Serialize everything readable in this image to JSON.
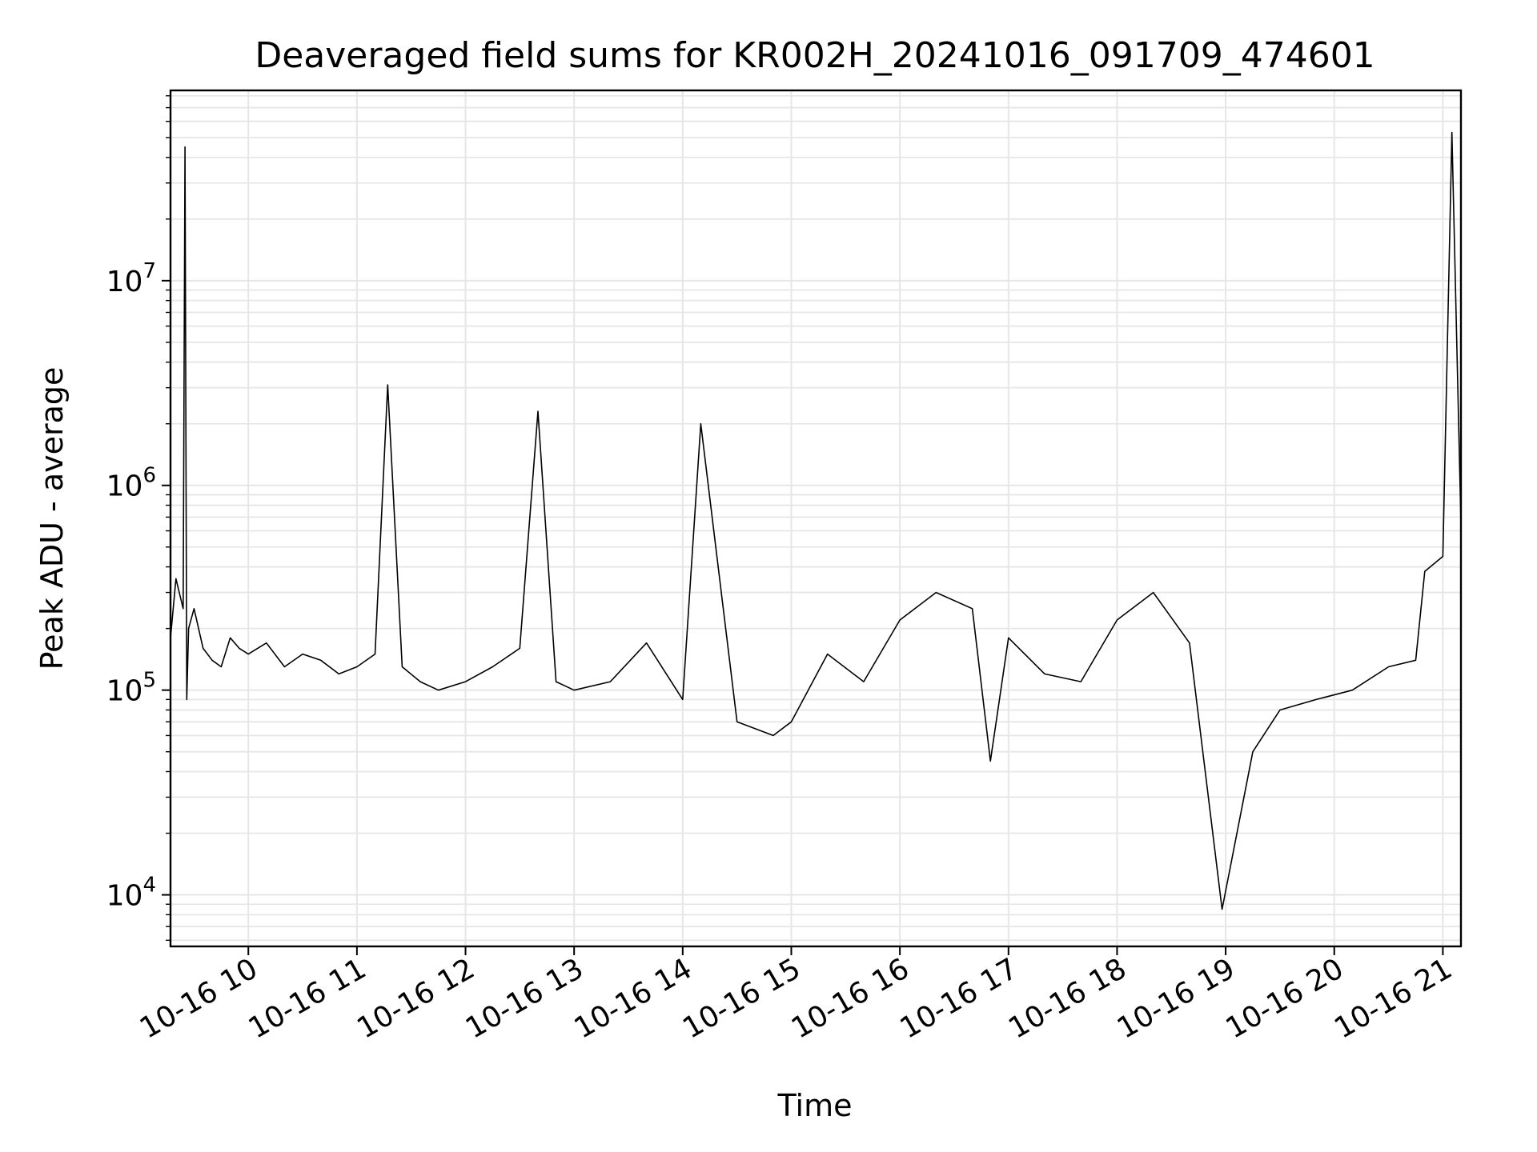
{
  "chart_data": {
    "type": "line",
    "title": "Deaveraged field sums for KR002H_20241016_091709_474601",
    "xlabel": "Time",
    "ylabel": "Peak ADU - average",
    "yscale": "log",
    "grid": true,
    "grid_minor": true,
    "line_color": "#000000",
    "grid_color": "#e6e6e6",
    "xlim": [
      "2024-10-16 09:17",
      "2024-10-16 21:10"
    ],
    "ylim": [
      5600,
      85000000
    ],
    "x_ticks": [
      {
        "t": "2024-10-16 10:00",
        "label": "10-16 10"
      },
      {
        "t": "2024-10-16 11:00",
        "label": "10-16 11"
      },
      {
        "t": "2024-10-16 12:00",
        "label": "10-16 12"
      },
      {
        "t": "2024-10-16 13:00",
        "label": "10-16 13"
      },
      {
        "t": "2024-10-16 14:00",
        "label": "10-16 14"
      },
      {
        "t": "2024-10-16 15:00",
        "label": "10-16 15"
      },
      {
        "t": "2024-10-16 16:00",
        "label": "10-16 16"
      },
      {
        "t": "2024-10-16 17:00",
        "label": "10-16 17"
      },
      {
        "t": "2024-10-16 18:00",
        "label": "10-16 18"
      },
      {
        "t": "2024-10-16 19:00",
        "label": "10-16 19"
      },
      {
        "t": "2024-10-16 20:00",
        "label": "10-16 20"
      },
      {
        "t": "2024-10-16 21:00",
        "label": "10-16 21"
      }
    ],
    "y_ticks": [
      {
        "value": 10000,
        "base": "10",
        "exp": "4"
      },
      {
        "value": 100000,
        "base": "10",
        "exp": "5"
      },
      {
        "value": 1000000,
        "base": "10",
        "exp": "6"
      },
      {
        "value": 10000000,
        "base": "10",
        "exp": "7"
      }
    ],
    "series": [
      {
        "x": [
          "2024-10-16 09:17",
          "2024-10-16 09:20",
          "2024-10-16 09:24",
          "2024-10-16 09:25",
          "2024-10-16 09:26",
          "2024-10-16 09:27",
          "2024-10-16 09:30",
          "2024-10-16 09:35",
          "2024-10-16 09:40",
          "2024-10-16 09:45",
          "2024-10-16 09:50",
          "2024-10-16 09:55",
          "2024-10-16 10:00",
          "2024-10-16 10:10",
          "2024-10-16 10:20",
          "2024-10-16 10:30",
          "2024-10-16 10:40",
          "2024-10-16 10:50",
          "2024-10-16 11:00",
          "2024-10-16 11:10",
          "2024-10-16 11:17",
          "2024-10-16 11:25",
          "2024-10-16 11:35",
          "2024-10-16 11:45",
          "2024-10-16 12:00",
          "2024-10-16 12:15",
          "2024-10-16 12:30",
          "2024-10-16 12:40",
          "2024-10-16 12:50",
          "2024-10-16 13:00",
          "2024-10-16 13:20",
          "2024-10-16 13:40",
          "2024-10-16 14:00",
          "2024-10-16 14:10",
          "2024-10-16 14:30",
          "2024-10-16 14:50",
          "2024-10-16 15:00",
          "2024-10-16 15:20",
          "2024-10-16 15:40",
          "2024-10-16 16:00",
          "2024-10-16 16:20",
          "2024-10-16 16:40",
          "2024-10-16 16:50",
          "2024-10-16 17:00",
          "2024-10-16 17:20",
          "2024-10-16 17:40",
          "2024-10-16 18:00",
          "2024-10-16 18:20",
          "2024-10-16 18:40",
          "2024-10-16 18:58",
          "2024-10-16 19:15",
          "2024-10-16 19:30",
          "2024-10-16 19:50",
          "2024-10-16 20:10",
          "2024-10-16 20:30",
          "2024-10-16 20:45",
          "2024-10-16 20:50",
          "2024-10-16 21:00",
          "2024-10-16 21:05",
          "2024-10-16 21:10"
        ],
        "y": [
          180000,
          350000,
          250000,
          45000000,
          90000,
          200000,
          250000,
          160000,
          140000,
          130000,
          180000,
          160000,
          150000,
          170000,
          130000,
          150000,
          140000,
          120000,
          130000,
          150000,
          3100000,
          130000,
          110000,
          100000,
          110000,
          130000,
          160000,
          2300000,
          110000,
          100000,
          110000,
          170000,
          90000,
          2000000,
          70000,
          60000,
          70000,
          150000,
          110000,
          220000,
          300000,
          250000,
          45000,
          180000,
          120000,
          110000,
          220000,
          300000,
          170000,
          8500,
          50000,
          80000,
          90000,
          100000,
          130000,
          140000,
          380000,
          450000,
          53000000,
          650000
        ]
      }
    ]
  }
}
